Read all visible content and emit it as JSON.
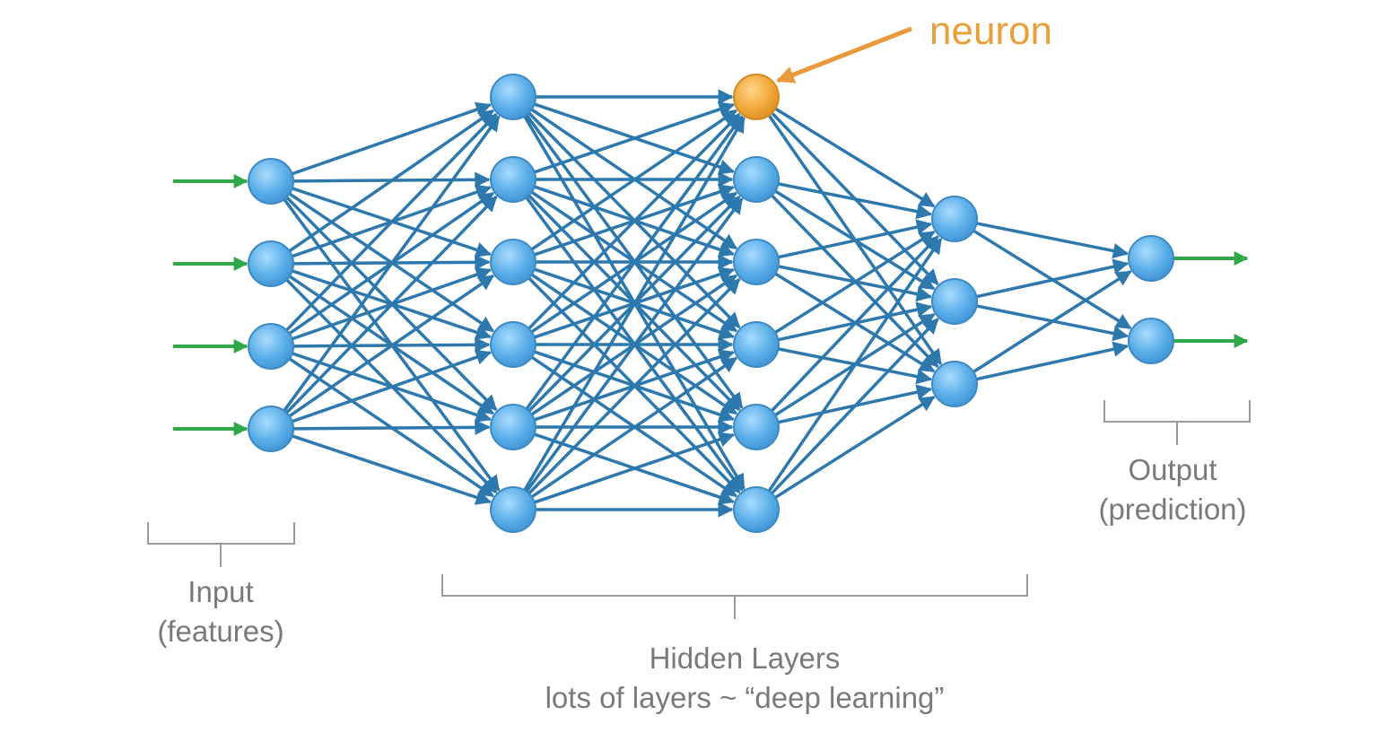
{
  "labels": {
    "neuron": "neuron",
    "input_line1": "Input",
    "input_line2": "(features)",
    "hidden_line1": "Hidden Layers",
    "hidden_line2": "lots of layers ~ “deep learning”",
    "output_line1": "Output",
    "output_line2": "(prediction)"
  },
  "network": {
    "layer_sizes": [
      4,
      6,
      6,
      3,
      2
    ],
    "highlighted_neuron": {
      "layer": 2,
      "index": 0
    }
  },
  "colors": {
    "neuron_fill": "#5aaee8",
    "neuron_stroke": "#3d89c4",
    "highlight_fill": "#f2a93b",
    "highlight_stroke": "#d48a22",
    "edge": "#2d78ad",
    "input_arrow": "#2fa84a",
    "pointer_arrow": "#e89a3c",
    "bracket": "#9a9a9a",
    "label_text": "#7a7a7a"
  }
}
